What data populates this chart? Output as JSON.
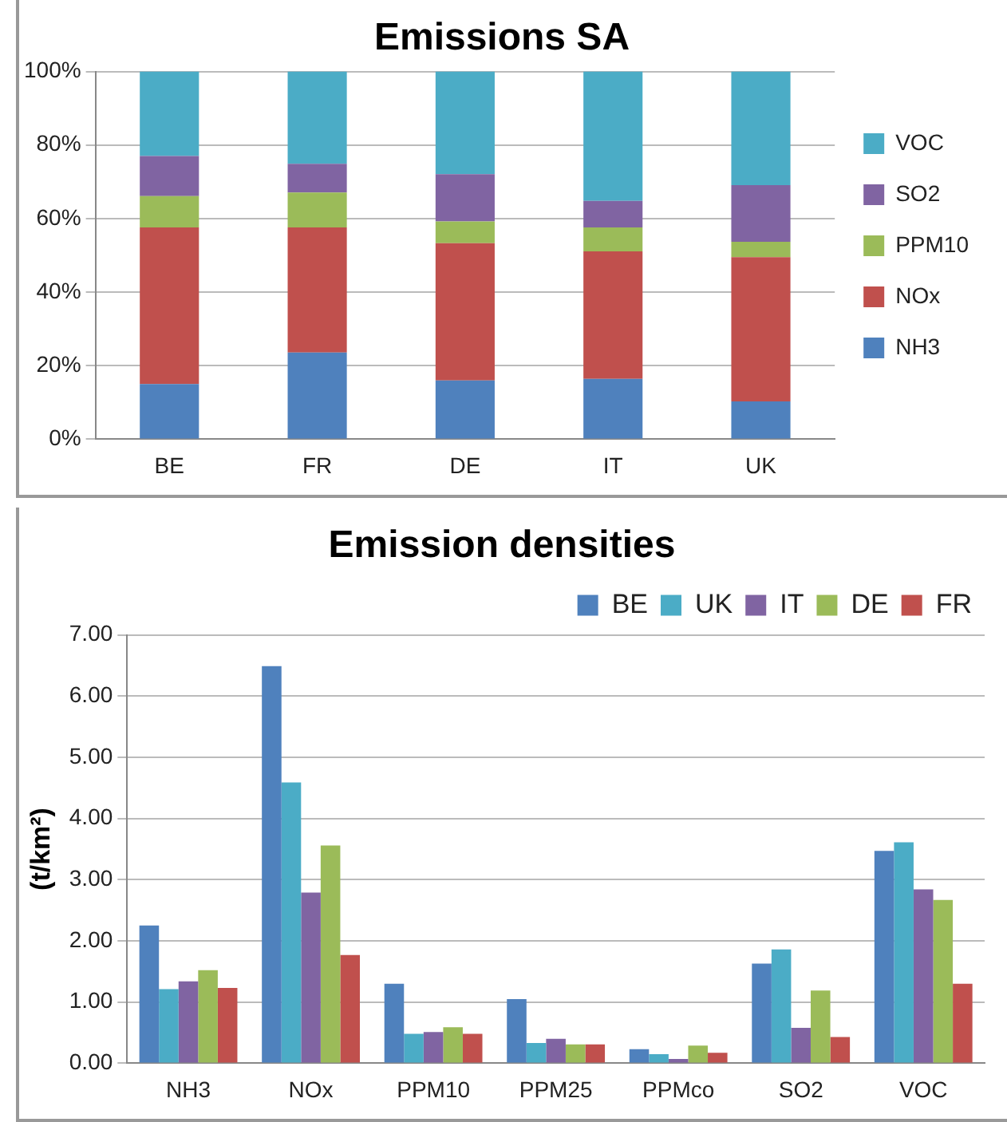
{
  "chart_data": [
    {
      "type": "bar",
      "title": "Emissions SA",
      "stacked": true,
      "categories": [
        "BE",
        "FR",
        "DE",
        "IT",
        "UK"
      ],
      "series": [
        {
          "name": "NH3",
          "color": "#4f81bd",
          "values": [
            15.0,
            23.6,
            16.0,
            16.4,
            10.3
          ]
        },
        {
          "name": "NOx",
          "color": "#c0504d",
          "values": [
            42.6,
            34.0,
            37.3,
            34.7,
            39.2
          ]
        },
        {
          "name": "PPM10",
          "color": "#9bbb59",
          "values": [
            8.5,
            9.5,
            5.9,
            6.5,
            4.2
          ]
        },
        {
          "name": "SO2",
          "color": "#8064a2",
          "values": [
            10.9,
            7.8,
            12.9,
            7.2,
            15.4
          ]
        },
        {
          "name": "VOC",
          "color": "#4bacc6",
          "values": [
            23.0,
            25.1,
            27.9,
            35.2,
            30.9
          ]
        }
      ],
      "ylim": [
        0,
        100
      ],
      "yticks": [
        {
          "value": 0,
          "label": "0%"
        },
        {
          "value": 20,
          "label": "20%"
        },
        {
          "value": 40,
          "label": "40%"
        },
        {
          "value": 60,
          "label": "60%"
        },
        {
          "value": 80,
          "label": "80%"
        },
        {
          "value": 100,
          "label": "100%"
        }
      ],
      "grid": "y",
      "legend": "right"
    },
    {
      "type": "bar",
      "title": "Emission densities",
      "ylabel": "(t/km²)",
      "categories": [
        "NH3",
        "NOx",
        "PPM10",
        "PPM25",
        "PPMco",
        "SO2",
        "VOC"
      ],
      "series": [
        {
          "name": "BE",
          "color": "#4f81bd",
          "values": [
            2.25,
            6.49,
            1.3,
            1.05,
            0.23,
            1.63,
            3.47
          ]
        },
        {
          "name": "UK",
          "color": "#4bacc6",
          "values": [
            1.21,
            4.59,
            0.48,
            0.33,
            0.15,
            1.86,
            3.61
          ]
        },
        {
          "name": "IT",
          "color": "#8064a2",
          "values": [
            1.34,
            2.79,
            0.51,
            0.4,
            0.07,
            0.58,
            2.84
          ]
        },
        {
          "name": "DE",
          "color": "#9bbb59",
          "values": [
            1.52,
            3.56,
            0.59,
            0.31,
            0.29,
            1.19,
            2.67
          ]
        },
        {
          "name": "FR",
          "color": "#c0504d",
          "values": [
            1.23,
            1.77,
            0.48,
            0.31,
            0.17,
            0.43,
            1.3
          ]
        }
      ],
      "ylim": [
        0,
        7
      ],
      "yticks": [
        {
          "value": 0,
          "label": "0.00"
        },
        {
          "value": 1,
          "label": "1.00"
        },
        {
          "value": 2,
          "label": "2.00"
        },
        {
          "value": 3,
          "label": "3.00"
        },
        {
          "value": 4,
          "label": "4.00"
        },
        {
          "value": 5,
          "label": "5.00"
        },
        {
          "value": 6,
          "label": "6.00"
        },
        {
          "value": 7,
          "label": "7.00"
        }
      ],
      "grid": "y",
      "legend": "top right"
    }
  ]
}
